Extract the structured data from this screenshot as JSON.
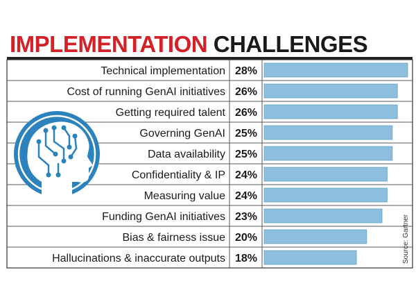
{
  "title": {
    "part1": "IMPLEMENTATION",
    "part2": "CHALLENGES"
  },
  "source": "Source: Gartner",
  "colors": {
    "bar": "#8dbedd",
    "bar_edge": "#6aa3c8",
    "title_red": "#d42027",
    "icon": "#2b82bd"
  },
  "icon": "brain-circuit-head-icon",
  "chart_data": {
    "type": "bar",
    "orientation": "horizontal",
    "title": "IMPLEMENTATION CHALLENGES",
    "categories": [
      "Technical implementation",
      "Cost of running GenAI initiatives",
      "Getting required talent",
      "Governing GenAI",
      "Data availability",
      "Confidentiality & IP",
      "Measuring value",
      "Funding GenAI initiatives",
      "Bias & fairness issue",
      "Hallucinations & inaccurate outputs"
    ],
    "values": [
      28,
      26,
      26,
      25,
      25,
      24,
      24,
      23,
      20,
      18
    ],
    "value_labels": [
      "28%",
      "26%",
      "26%",
      "25%",
      "25%",
      "24%",
      "24%",
      "23%",
      "20%",
      "18%"
    ],
    "xlim": [
      0,
      28
    ],
    "grid": false,
    "legend": "none"
  }
}
